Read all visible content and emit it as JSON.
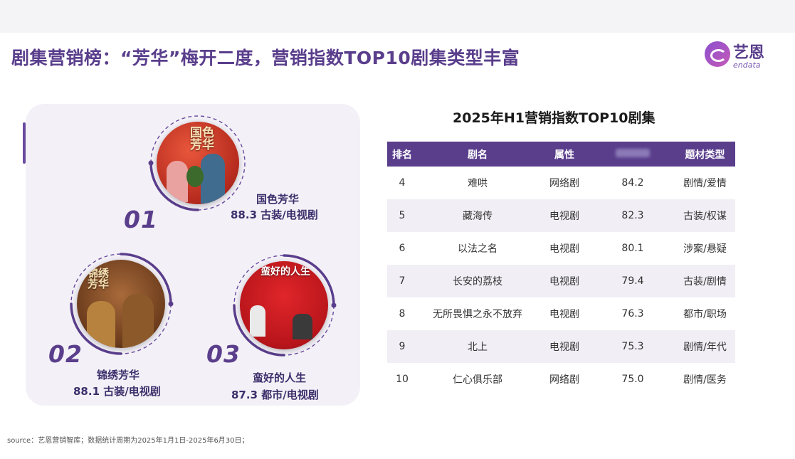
{
  "title": "剧集营销榜：“芳华”梅开二度，营销指数TOP10剧集类型丰富",
  "logo": {
    "cn": "艺恩",
    "en": "endata"
  },
  "featured": [
    {
      "rank": "01",
      "name": "国色芳华",
      "info": "88.3  古装/电视剧",
      "poster_title": "国色芳华"
    },
    {
      "rank": "02",
      "name": "锦绣芳华",
      "info": "88.1  古装/电视剧",
      "poster_title": "锦绣芳华"
    },
    {
      "rank": "03",
      "name": "蛮好的人生",
      "info": "87.3  都市/电视剧",
      "poster_title": "蛮好的人生"
    }
  ],
  "table": {
    "title": "2025年H1营销指数TOP10剧集",
    "headers": [
      "排名",
      "剧名",
      "属性",
      "",
      "题材类型"
    ]
  },
  "chart_data": {
    "type": "table",
    "title": "2025年H1营销指数TOP10剧集",
    "columns": [
      "排名",
      "剧名",
      "属性",
      "",
      "题材类型"
    ],
    "rows": [
      [
        "4",
        "难哄",
        "网络剧",
        "84.2",
        "剧情/爱情"
      ],
      [
        "5",
        "藏海传",
        "电视剧",
        "82.3",
        "古装/权谋"
      ],
      [
        "6",
        "以法之名",
        "电视剧",
        "80.1",
        "涉案/悬疑"
      ],
      [
        "7",
        "长安的荔枝",
        "电视剧",
        "79.4",
        "古装/剧情"
      ],
      [
        "8",
        "无所畏惧之永不放弃",
        "电视剧",
        "76.3",
        "都市/职场"
      ],
      [
        "9",
        "北上",
        "电视剧",
        "75.3",
        "剧情/年代"
      ],
      [
        "10",
        "仁心俱乐部",
        "网络剧",
        "75.0",
        "剧情/医务"
      ]
    ]
  },
  "source": "source：艺恩营销智库；数据统计周期为2025年1月1日-2025年6月30日；"
}
